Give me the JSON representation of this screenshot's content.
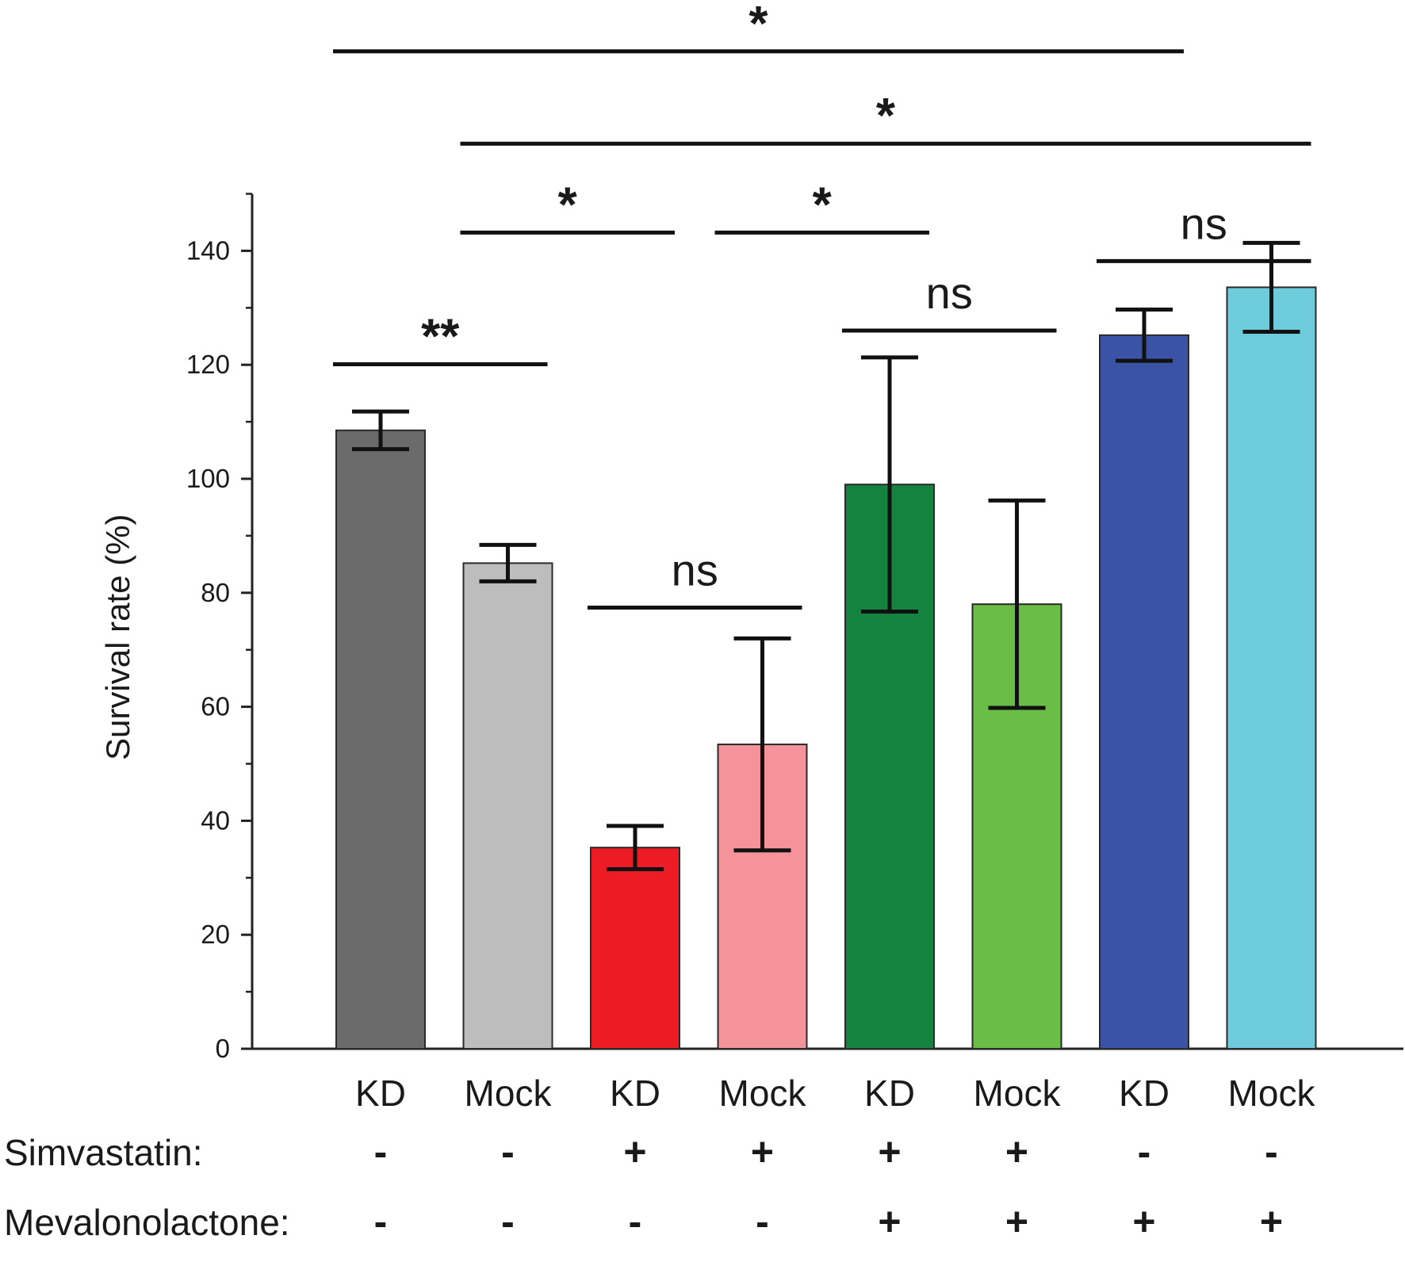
{
  "chart_data": {
    "type": "bar",
    "title": "",
    "xlabel": "",
    "ylabel": "Survival rate (%)",
    "ylim": [
      0,
      150
    ],
    "yticks": [
      0,
      20,
      40,
      60,
      80,
      100,
      120,
      140
    ],
    "grid": false,
    "categories": [
      "KD",
      "Mock",
      "KD",
      "Mock",
      "KD",
      "Mock",
      "KD",
      "Mock"
    ],
    "values": [
      108.5,
      85.2,
      35.3,
      53.4,
      99.0,
      78.0,
      125.2,
      133.6
    ],
    "errors": [
      3.3,
      3.2,
      3.8,
      18.6,
      22.3,
      18.2,
      4.5,
      7.8
    ],
    "colors": [
      "#6b6b6b",
      "#bdbdbd",
      "#ed1c24",
      "#f4949a",
      "#148340",
      "#6abd45",
      "#3a53a4",
      "#6dcbdb"
    ],
    "condition_rows": [
      {
        "label": "Simvastatin:",
        "signs": [
          "-",
          "-",
          "+",
          "+",
          "+",
          "+",
          "-",
          "-"
        ]
      },
      {
        "label": "Mevalonolactone:",
        "signs": [
          "-",
          "-",
          "-",
          "-",
          "+",
          "+",
          "+",
          "+"
        ]
      }
    ],
    "significance": [
      {
        "from": 0,
        "to": 1,
        "label": "**",
        "level": 120.1
      },
      {
        "from": 2,
        "to": 3,
        "label": "ns",
        "level": 77.4
      },
      {
        "from": 1,
        "to": 2,
        "label": "*",
        "level": 143.2
      },
      {
        "from": 3,
        "to": 4,
        "label": "*",
        "level": 143.2
      },
      {
        "from": 4,
        "to": 5,
        "label": "ns",
        "level": 126.0
      },
      {
        "from": 6,
        "to": 7,
        "label": "ns",
        "level": 138.2
      },
      {
        "from": 1,
        "to": 7,
        "label": "*",
        "level": 158.8
      },
      {
        "from": 0,
        "to": 6,
        "label": "*",
        "level": 175.0
      }
    ]
  }
}
